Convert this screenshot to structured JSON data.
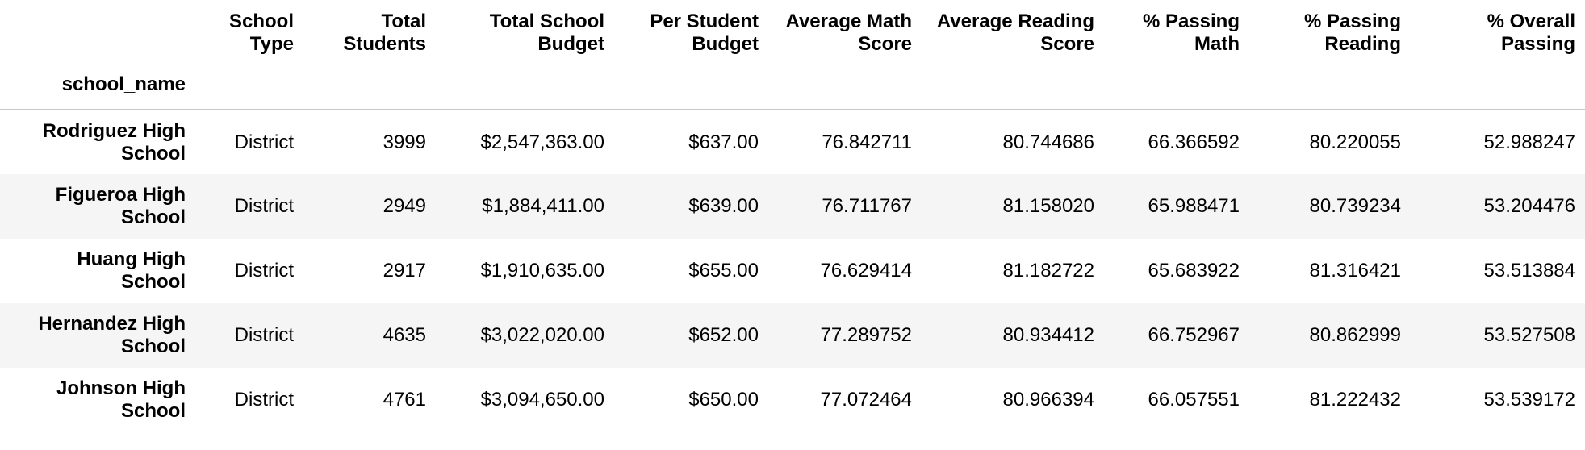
{
  "table": {
    "columns": [
      {
        "line1": "School",
        "line2": "Type"
      },
      {
        "line1": "Total",
        "line2": "Students"
      },
      {
        "line1": "Total School",
        "line2": "Budget"
      },
      {
        "line1": "Per Student",
        "line2": "Budget"
      },
      {
        "line1": "Average Math",
        "line2": "Score"
      },
      {
        "line1": "Average Reading",
        "line2": "Score"
      },
      {
        "line1": "% Passing",
        "line2": "Math"
      },
      {
        "line1": "% Passing",
        "line2": "Reading"
      },
      {
        "line1": "% Overall",
        "line2": "Passing"
      }
    ],
    "index_name": "school_name",
    "rows": [
      {
        "name1": "Rodriguez High",
        "name2": "School",
        "cells": [
          "District",
          "3999",
          "$2,547,363.00",
          "$637.00",
          "76.842711",
          "80.744686",
          "66.366592",
          "80.220055",
          "52.988247"
        ]
      },
      {
        "name1": "Figueroa High",
        "name2": "School",
        "cells": [
          "District",
          "2949",
          "$1,884,411.00",
          "$639.00",
          "76.711767",
          "81.158020",
          "65.988471",
          "80.739234",
          "53.204476"
        ]
      },
      {
        "name1": "Huang High",
        "name2": "School",
        "cells": [
          "District",
          "2917",
          "$1,910,635.00",
          "$655.00",
          "76.629414",
          "81.182722",
          "65.683922",
          "81.316421",
          "53.513884"
        ]
      },
      {
        "name1": "Hernandez High",
        "name2": "School",
        "cells": [
          "District",
          "4635",
          "$3,022,020.00",
          "$652.00",
          "77.289752",
          "80.934412",
          "66.752967",
          "80.862999",
          "53.527508"
        ]
      },
      {
        "name1": "Johnson High",
        "name2": "School",
        "cells": [
          "District",
          "4761",
          "$3,094,650.00",
          "$650.00",
          "77.072464",
          "80.966394",
          "66.057551",
          "81.222432",
          "53.539172"
        ]
      }
    ],
    "colors": {
      "row_shade": "#f5f5f5",
      "header_rule": "#c8c8c8",
      "text": "#000000"
    }
  }
}
